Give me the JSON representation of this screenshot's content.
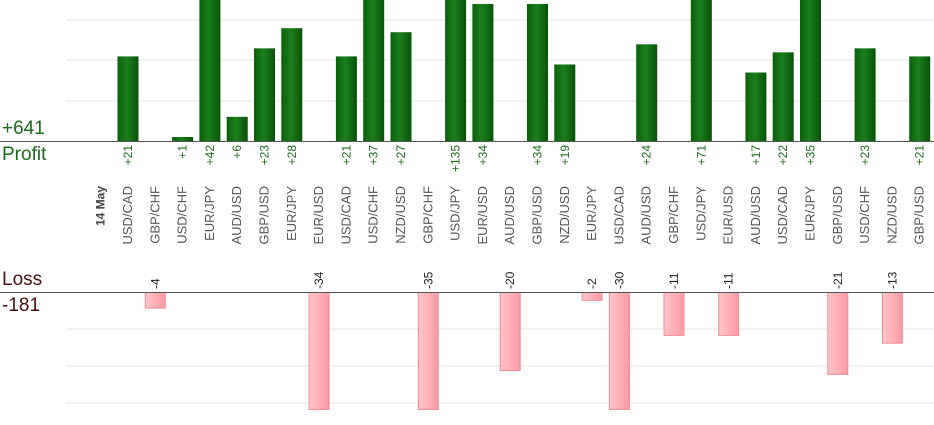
{
  "colors": {
    "profit_bar": "#0b6a0b",
    "profit_bar_light": "#1f8a1f",
    "profit_text": "#1a6b1a",
    "loss_bar": "#ffb3b8",
    "loss_bar_border": "#f28c96",
    "loss_text": "#4a1010",
    "axis": "#555555",
    "grid": "#e6e6e6",
    "category_text": "#555555"
  },
  "summary": {
    "profit_total": "+641",
    "profit_label": "Profit",
    "loss_label": "Loss",
    "loss_total": "-181"
  },
  "chart_data": {
    "type": "bar",
    "title": "",
    "date_label": "14 May",
    "categories": [
      "USD/CAD",
      "GBP/CHF",
      "USD/CHF",
      "EUR/JPY",
      "AUD/USD",
      "GBP/USD",
      "EUR/JPY",
      "EUR/USD",
      "USD/CAD",
      "USD/CHF",
      "NZD/USD",
      "GBP/CHF",
      "USD/JPY",
      "EUR/USD",
      "AUD/USD",
      "GBP/USD",
      "NZD/USD",
      "EUR/JPY",
      "USD/CAD",
      "AUD/USD",
      "GBP/CHF",
      "USD/JPY",
      "EUR/USD",
      "AUD/USD",
      "USD/CAD",
      "EUR/JPY",
      "GBP/USD",
      "USD/CHF",
      "NZD/USD",
      "GBP/USD"
    ],
    "series": [
      {
        "values": [
          21,
          null,
          1,
          42,
          6,
          23,
          28,
          null,
          21,
          37,
          27,
          null,
          135,
          34,
          null,
          34,
          19,
          null,
          null,
          24,
          null,
          71,
          null,
          17,
          22,
          35,
          null,
          23,
          null,
          21
        ],
        "labels": [
          "+21",
          "",
          "+1",
          "+42",
          "+6",
          "+23",
          "+28",
          "",
          "+21",
          "+37",
          "+27",
          "",
          "+135",
          "+34",
          "",
          "+34",
          "+19",
          "",
          "",
          "+24",
          "",
          "+71",
          "",
          "+17",
          "+22",
          "+35",
          "",
          "+23",
          "",
          "+21"
        ]
      },
      {
        "values": [
          null,
          -4,
          null,
          null,
          null,
          null,
          null,
          -34,
          null,
          null,
          null,
          -35,
          null,
          null,
          -20,
          null,
          null,
          -2,
          -30,
          null,
          -11,
          null,
          -11,
          null,
          null,
          null,
          -21,
          null,
          -13,
          null
        ],
        "labels": [
          "",
          "-4",
          "",
          "",
          "",
          "",
          "",
          "-34",
          "",
          "",
          "",
          "-35",
          "",
          "",
          "-20",
          "",
          "",
          "-2",
          "-30",
          "",
          "-11",
          "",
          "-11",
          "",
          "",
          "",
          "-21",
          "",
          "-13",
          ""
        ]
      }
    ],
    "profit_axis_ylim": [
      0,
      35
    ],
    "loss_axis_ylim": [
      -30,
      0
    ],
    "grid": true
  }
}
